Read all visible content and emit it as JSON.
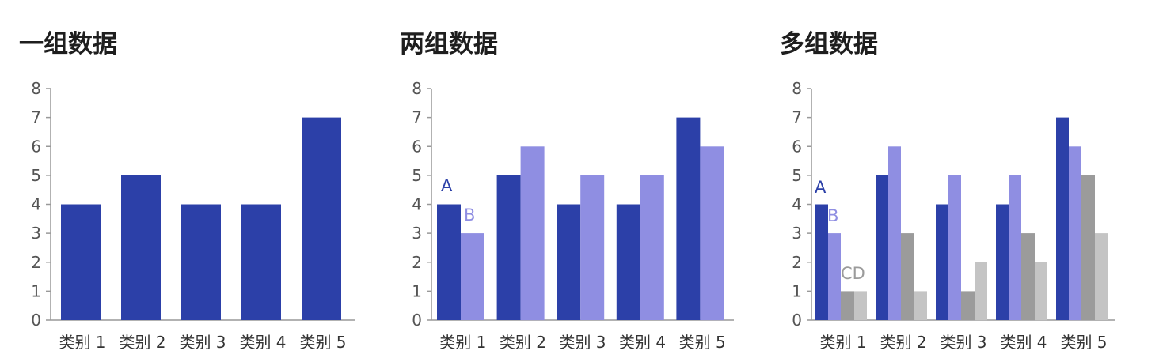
{
  "colors": {
    "A": "#2c40a8",
    "B": "#8f8ee2",
    "C": "#9b9b9b",
    "D": "#c4c4c4"
  },
  "chart_data": [
    {
      "type": "bar",
      "title": "一组数据",
      "categories": [
        "类别 1",
        "类别 2",
        "类别 3",
        "类别 4",
        "类别 5"
      ],
      "ylim": [
        0,
        8
      ],
      "yticks": [
        0,
        1,
        2,
        3,
        4,
        5,
        6,
        7,
        8
      ],
      "series": [
        {
          "values": [
            4,
            5,
            4,
            4,
            7
          ],
          "color_key": "A"
        }
      ]
    },
    {
      "type": "bar",
      "title": "两组数据",
      "categories": [
        "类别 1",
        "类别 2",
        "类别 3",
        "类别 4",
        "类别 5"
      ],
      "ylim": [
        0,
        8
      ],
      "yticks": [
        0,
        1,
        2,
        3,
        4,
        5,
        6,
        7,
        8
      ],
      "series": [
        {
          "name": "A",
          "values": [
            4,
            5,
            4,
            4,
            7
          ],
          "color_key": "A"
        },
        {
          "name": "B",
          "values": [
            3,
            6,
            5,
            5,
            6
          ],
          "color_key": "B"
        }
      ]
    },
    {
      "type": "bar",
      "title": "多组数据",
      "categories": [
        "类别 1",
        "类别 2",
        "类别 3",
        "类别 4",
        "类别 5"
      ],
      "ylim": [
        0,
        8
      ],
      "yticks": [
        0,
        1,
        2,
        3,
        4,
        5,
        6,
        7,
        8
      ],
      "series": [
        {
          "name": "A",
          "values": [
            4,
            5,
            4,
            4,
            7
          ],
          "color_key": "A"
        },
        {
          "name": "B",
          "values": [
            3,
            6,
            5,
            5,
            6
          ],
          "color_key": "B"
        },
        {
          "name": "C",
          "values": [
            1,
            3,
            1,
            3,
            5
          ],
          "color_key": "C"
        },
        {
          "name": "D",
          "values": [
            1,
            1,
            2,
            2,
            3
          ],
          "color_key": "D"
        }
      ],
      "series_labels_text": [
        "A",
        "B",
        "CD"
      ]
    }
  ]
}
